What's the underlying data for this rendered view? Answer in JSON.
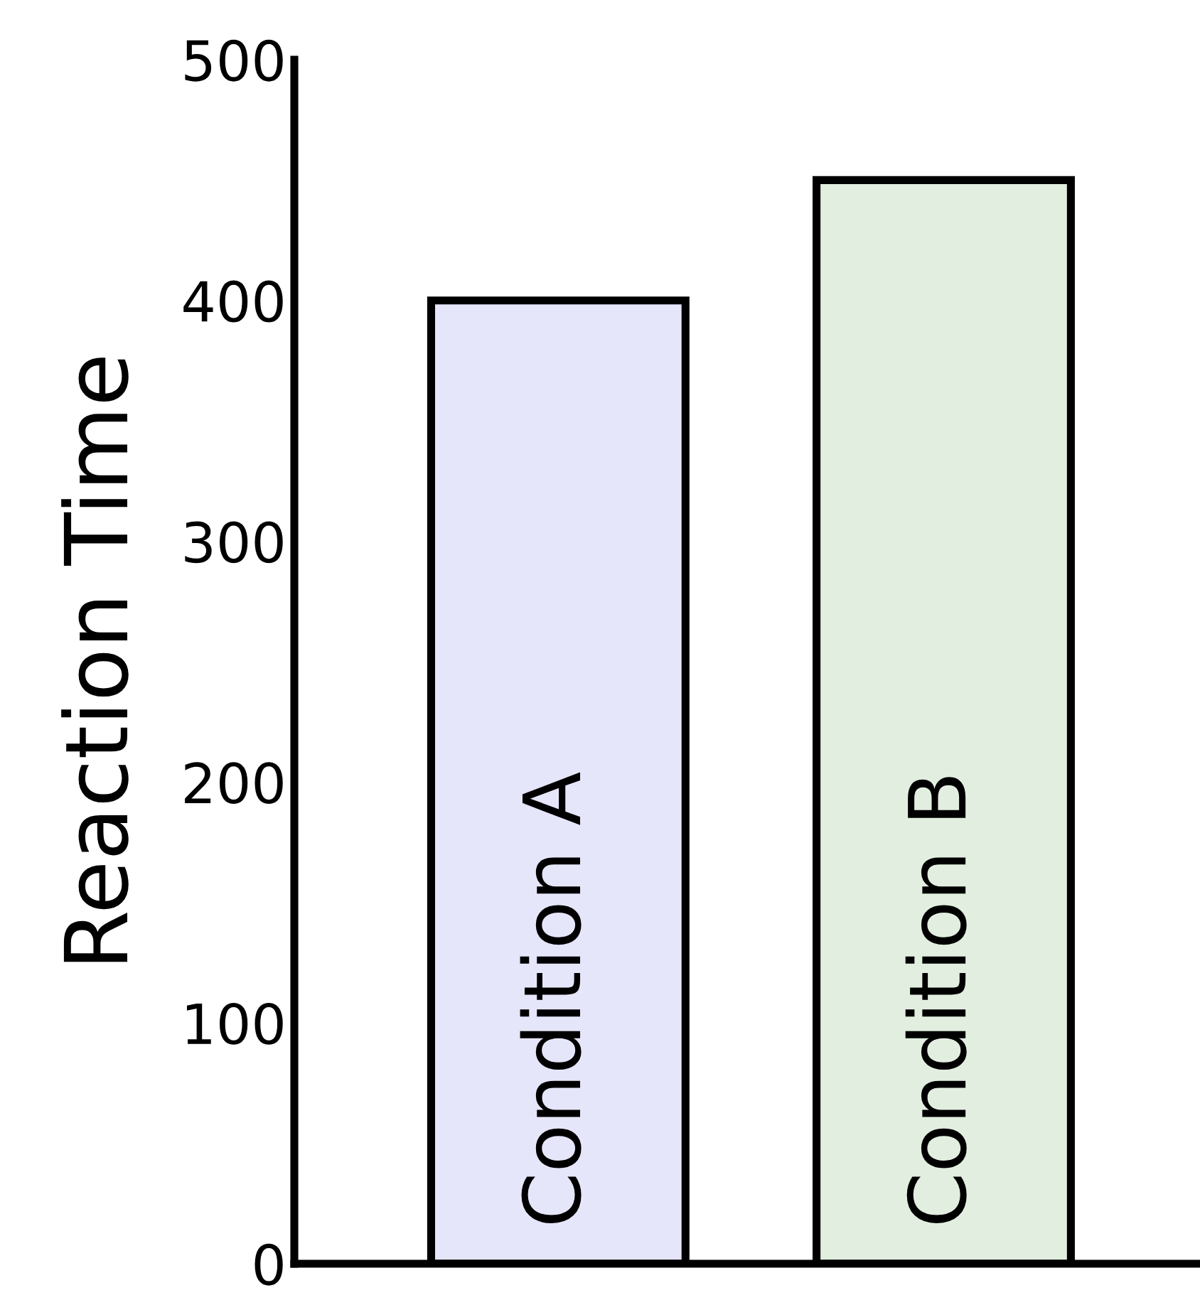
{
  "chart_data": {
    "type": "bar",
    "ylabel": "Reaction Time",
    "categories": [
      "Condition A",
      "Condition B"
    ],
    "values": [
      400,
      450
    ],
    "colors": [
      "#e6e6fa",
      "#e2efe0"
    ],
    "ylim": [
      0,
      500
    ],
    "yticks": [
      0,
      100,
      200,
      300,
      400,
      500
    ],
    "tick_labels": "y",
    "grid": false,
    "legend": false
  }
}
